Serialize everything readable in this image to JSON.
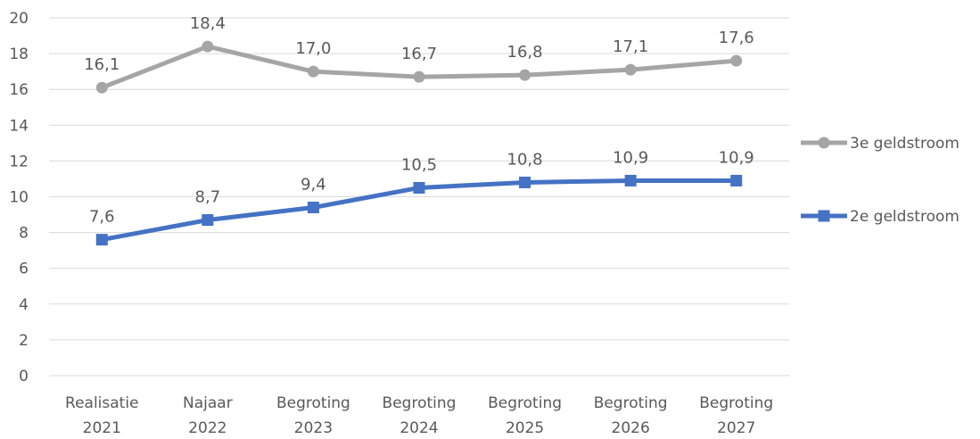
{
  "chart_data": {
    "type": "line",
    "title": "",
    "xlabel": "",
    "ylabel": "",
    "ylim": [
      0,
      20
    ],
    "yticks": [
      "0",
      "2",
      "4",
      "6",
      "8",
      "10",
      "12",
      "14",
      "16",
      "18",
      "20"
    ],
    "grid": true,
    "legend_position": "right",
    "categories": [
      [
        "Realisatie",
        "2021"
      ],
      [
        "Najaar",
        "2022"
      ],
      [
        "Begroting",
        "2023"
      ],
      [
        "Begroting",
        "2024"
      ],
      [
        "Begroting",
        "2025"
      ],
      [
        "Begroting",
        "2026"
      ],
      [
        "Begroting",
        "2027"
      ]
    ],
    "series": [
      {
        "name": "3e geldstroom",
        "marker": "circle",
        "color": "#A5A5A5",
        "values": [
          16.1,
          18.4,
          17.0,
          16.7,
          16.8,
          17.1,
          17.6
        ],
        "labels": [
          "16,1",
          "18,4",
          "17,0",
          "16,7",
          "16,8",
          "17,1",
          "17,6"
        ]
      },
      {
        "name": "2e geldstroom",
        "marker": "square",
        "color": "#4472C4",
        "values": [
          7.6,
          8.7,
          9.4,
          10.5,
          10.8,
          10.9,
          10.9
        ],
        "labels": [
          "7,6",
          "8,7",
          "9,4",
          "10,5",
          "10,8",
          "10,9",
          "10,9"
        ]
      }
    ]
  }
}
